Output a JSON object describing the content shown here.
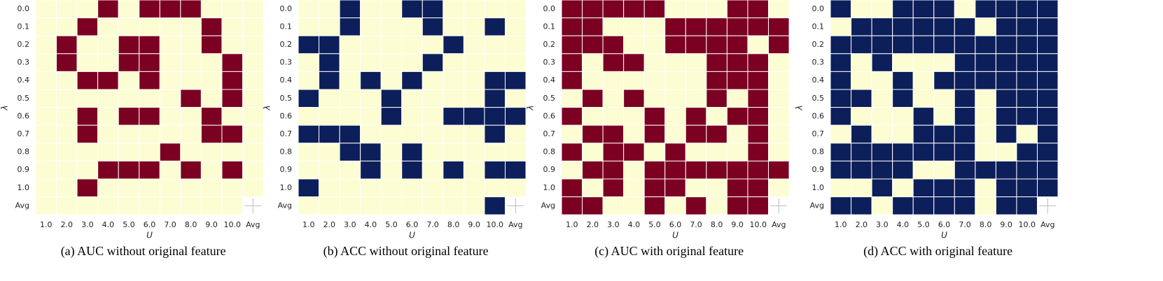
{
  "chart_data": [
    {
      "type": "heatmap",
      "caption": "(a) AUC without original feature",
      "x_label": "U",
      "y_label": "λ",
      "x": [
        "1.0",
        "2.0",
        "3.0",
        "4.0",
        "5.0",
        "6.0",
        "7.0",
        "8.0",
        "9.0",
        "10.0",
        "Avg"
      ],
      "y": [
        "0.0",
        "0.1",
        "0.2",
        "0.3",
        "0.4",
        "0.5",
        "0.6",
        "0.7",
        "0.8",
        "0.9",
        "1.0",
        "Avg"
      ],
      "color": "#7b0022",
      "background": "#fcfdd2",
      "values": [
        [
          0,
          0,
          0,
          1,
          0,
          1,
          1,
          1,
          0,
          0,
          0
        ],
        [
          0,
          0,
          1,
          0,
          0,
          0,
          0,
          0,
          1,
          0,
          0
        ],
        [
          0,
          1,
          0,
          0,
          1,
          1,
          0,
          0,
          1,
          0,
          0
        ],
        [
          0,
          1,
          0,
          0,
          1,
          1,
          0,
          0,
          0,
          1,
          0
        ],
        [
          0,
          0,
          1,
          1,
          0,
          1,
          0,
          0,
          0,
          1,
          0
        ],
        [
          0,
          0,
          0,
          0,
          0,
          0,
          0,
          1,
          0,
          1,
          0
        ],
        [
          0,
          0,
          1,
          0,
          1,
          1,
          0,
          0,
          1,
          0,
          0
        ],
        [
          0,
          0,
          1,
          0,
          0,
          0,
          0,
          0,
          1,
          1,
          0
        ],
        [
          0,
          0,
          0,
          0,
          0,
          0,
          1,
          0,
          0,
          0,
          0
        ],
        [
          0,
          0,
          0,
          1,
          1,
          1,
          0,
          1,
          0,
          1,
          0
        ],
        [
          0,
          0,
          1,
          0,
          0,
          0,
          0,
          0,
          0,
          0,
          0
        ],
        [
          0,
          0,
          0,
          0,
          0,
          0,
          0,
          0,
          0,
          0,
          null
        ]
      ]
    },
    {
      "type": "heatmap",
      "caption": "(b) ACC without original feature",
      "x_label": "U",
      "y_label": "λ",
      "x": [
        "1.0",
        "2.0",
        "3.0",
        "4.0",
        "5.0",
        "6.0",
        "7.0",
        "8.0",
        "9.0",
        "10.0",
        "Avg"
      ],
      "y": [
        "0.0",
        "0.1",
        "0.2",
        "0.3",
        "0.4",
        "0.5",
        "0.6",
        "0.7",
        "0.8",
        "0.9",
        "1.0",
        "Avg"
      ],
      "color": "#0c1f5a",
      "background": "#fcfdd2",
      "values": [
        [
          0,
          0,
          1,
          0,
          0,
          1,
          1,
          0,
          0,
          0,
          0
        ],
        [
          0,
          0,
          1,
          0,
          0,
          0,
          1,
          0,
          0,
          1,
          0
        ],
        [
          1,
          1,
          0,
          0,
          0,
          0,
          0,
          1,
          0,
          0,
          0
        ],
        [
          0,
          1,
          0,
          0,
          0,
          0,
          1,
          0,
          0,
          0,
          0
        ],
        [
          0,
          1,
          0,
          1,
          0,
          1,
          0,
          0,
          0,
          1,
          1
        ],
        [
          1,
          0,
          0,
          0,
          1,
          0,
          0,
          0,
          0,
          1,
          0
        ],
        [
          0,
          0,
          0,
          0,
          1,
          0,
          0,
          1,
          1,
          1,
          1
        ],
        [
          1,
          1,
          1,
          0,
          0,
          0,
          0,
          0,
          0,
          1,
          0
        ],
        [
          0,
          0,
          1,
          1,
          0,
          1,
          0,
          0,
          0,
          0,
          0
        ],
        [
          0,
          0,
          0,
          1,
          0,
          1,
          0,
          1,
          0,
          1,
          1
        ],
        [
          1,
          0,
          0,
          0,
          0,
          0,
          0,
          0,
          0,
          0,
          0
        ],
        [
          0,
          0,
          0,
          0,
          0,
          0,
          0,
          0,
          0,
          1,
          null
        ]
      ]
    },
    {
      "type": "heatmap",
      "caption": "(c) AUC with original feature",
      "x_label": "U",
      "y_label": "λ",
      "x": [
        "1.0",
        "2.0",
        "3.0",
        "4.0",
        "5.0",
        "6.0",
        "7.0",
        "8.0",
        "9.0",
        "10.0",
        "Avg"
      ],
      "y": [
        "0.0",
        "0.1",
        "0.2",
        "0.3",
        "0.4",
        "0.5",
        "0.6",
        "0.7",
        "0.8",
        "0.9",
        "1.0",
        "Avg"
      ],
      "color": "#7b0022",
      "background": "#fcfdd2",
      "values": [
        [
          1,
          1,
          1,
          1,
          1,
          0,
          0,
          0,
          1,
          1,
          0
        ],
        [
          1,
          1,
          0,
          0,
          0,
          1,
          1,
          1,
          1,
          1,
          1
        ],
        [
          1,
          1,
          1,
          0,
          0,
          1,
          1,
          1,
          1,
          0,
          1
        ],
        [
          1,
          0,
          1,
          1,
          0,
          0,
          0,
          1,
          1,
          1,
          0
        ],
        [
          1,
          0,
          0,
          0,
          0,
          0,
          0,
          1,
          1,
          1,
          0
        ],
        [
          0,
          1,
          0,
          1,
          0,
          0,
          0,
          1,
          0,
          1,
          0
        ],
        [
          1,
          0,
          0,
          0,
          1,
          0,
          1,
          0,
          1,
          1,
          0
        ],
        [
          0,
          1,
          1,
          0,
          1,
          0,
          1,
          1,
          0,
          1,
          0
        ],
        [
          1,
          0,
          1,
          1,
          0,
          1,
          0,
          0,
          0,
          1,
          0
        ],
        [
          0,
          1,
          1,
          0,
          1,
          1,
          1,
          1,
          1,
          1,
          1
        ],
        [
          1,
          0,
          1,
          0,
          1,
          1,
          0,
          0,
          1,
          1,
          0
        ],
        [
          1,
          1,
          0,
          0,
          1,
          0,
          1,
          0,
          1,
          1,
          null
        ]
      ]
    },
    {
      "type": "heatmap",
      "caption": "(d) ACC with original feature",
      "x_label": "U",
      "y_label": "λ",
      "x": [
        "1.0",
        "2.0",
        "3.0",
        "4.0",
        "5.0",
        "6.0",
        "7.0",
        "8.0",
        "9.0",
        "10.0",
        "Avg"
      ],
      "y": [
        "0.0",
        "0.1",
        "0.2",
        "0.3",
        "0.4",
        "0.5",
        "0.6",
        "0.7",
        "0.8",
        "0.9",
        "1.0",
        "Avg"
      ],
      "color": "#0c1f5a",
      "background": "#fcfdd2",
      "values": [
        [
          1,
          0,
          0,
          1,
          1,
          1,
          0,
          1,
          1,
          1,
          1
        ],
        [
          0,
          1,
          1,
          1,
          1,
          1,
          1,
          0,
          1,
          1,
          1
        ],
        [
          1,
          1,
          1,
          1,
          1,
          1,
          1,
          1,
          1,
          1,
          1
        ],
        [
          1,
          0,
          1,
          0,
          0,
          0,
          1,
          1,
          1,
          1,
          1
        ],
        [
          1,
          0,
          0,
          1,
          0,
          1,
          1,
          1,
          1,
          1,
          1
        ],
        [
          1,
          1,
          0,
          1,
          0,
          0,
          1,
          0,
          1,
          1,
          1
        ],
        [
          1,
          0,
          0,
          0,
          1,
          0,
          1,
          0,
          1,
          1,
          1
        ],
        [
          0,
          1,
          0,
          0,
          1,
          1,
          1,
          0,
          1,
          0,
          1
        ],
        [
          1,
          1,
          1,
          1,
          1,
          1,
          1,
          0,
          0,
          1,
          1
        ],
        [
          1,
          1,
          1,
          1,
          0,
          0,
          1,
          1,
          1,
          1,
          1
        ],
        [
          0,
          0,
          1,
          0,
          1,
          1,
          1,
          0,
          1,
          1,
          1
        ],
        [
          1,
          1,
          0,
          1,
          1,
          1,
          1,
          0,
          1,
          1,
          null
        ]
      ]
    }
  ]
}
